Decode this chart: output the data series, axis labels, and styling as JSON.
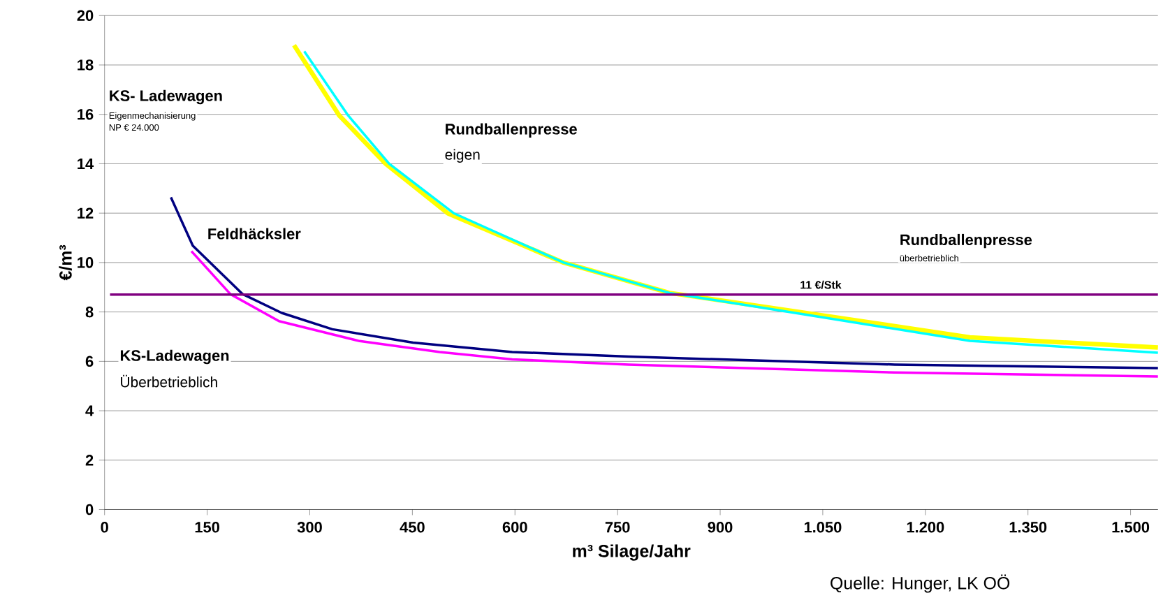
{
  "chart_data": {
    "type": "line",
    "xlabel": "m³ Silage/Jahr",
    "ylabel": "€/m³",
    "xlim": [
      0,
      1540
    ],
    "ylim": [
      0,
      20
    ],
    "xticks": [
      0,
      150,
      300,
      450,
      600,
      750,
      900,
      {
        "value": 1050,
        "label": "1.050"
      },
      {
        "value": 1200,
        "label": "1.200"
      },
      {
        "value": 1350,
        "label": "1.350"
      },
      {
        "value": 1500,
        "label": "1.500"
      }
    ],
    "yticks": [
      0,
      2,
      4,
      6,
      8,
      10,
      12,
      14,
      16,
      18,
      20
    ],
    "grid": "y",
    "series": [
      {
        "color": "#ffff00",
        "x": [
          277,
          343,
          411,
          502,
          671,
          826,
          1016,
          1265,
          1540
        ],
        "values": [
          18.8,
          15.96,
          14.0,
          11.99,
          10.0,
          8.77,
          8.0,
          6.97,
          6.56
        ]
      },
      {
        "color": "#00ffff",
        "x": [
          292,
          356,
          416,
          511,
          671,
          826,
          1016,
          1265,
          1540
        ],
        "values": [
          18.55,
          15.96,
          14.0,
          11.99,
          10.0,
          8.77,
          7.93,
          6.83,
          6.35
        ]
      },
      {
        "color": "#000080",
        "x": [
          97,
          129,
          202,
          259,
          333,
          451,
          596,
          766,
          1155,
          1540
        ],
        "values": [
          12.64,
          10.68,
          8.72,
          7.96,
          7.3,
          6.76,
          6.38,
          6.19,
          5.87,
          5.73
        ]
      },
      {
        "color": "#ff00ff",
        "x": [
          127,
          184,
          255,
          373,
          490,
          596,
          766,
          1155,
          1540
        ],
        "values": [
          10.46,
          8.72,
          7.63,
          6.82,
          6.38,
          6.08,
          5.87,
          5.55,
          5.39
        ]
      },
      {
        "color": "#800080",
        "x": [
          8,
          1540
        ],
        "values": [
          8.7,
          8.7
        ]
      }
    ],
    "annotations": [
      "KS- Ladewagen",
      "Eigenmechanisierung",
      "NP € 24.000",
      "Rundballenpresse",
      "eigen",
      "Feldhäcksler",
      "Rundballenpresse",
      "überbetrieblich",
      "11 €/Stk",
      "KS-Ladewagen",
      "Überbetrieblich",
      "Quelle: Hunger, LK OÖ"
    ]
  }
}
